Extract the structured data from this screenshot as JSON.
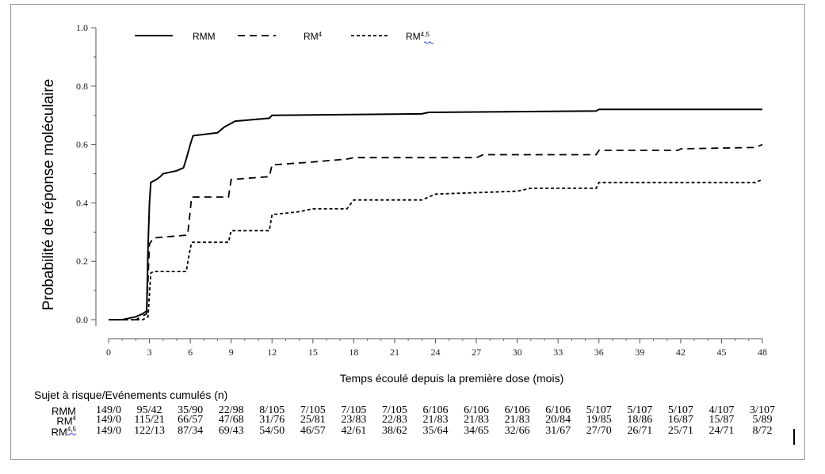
{
  "chart_data": {
    "type": "line",
    "ylabel": "Probabilité de réponse moléculaire",
    "xlabel": "Temps écoulé depuis la première dose (mois)",
    "xlim": [
      0,
      48
    ],
    "ylim": [
      0,
      1.0
    ],
    "xticks": [
      "0",
      "3",
      "6",
      "9",
      "12",
      "15",
      "18",
      "21",
      "24",
      "27",
      "30",
      "33",
      "36",
      "39",
      "42",
      "45",
      "48"
    ],
    "yticks": [
      "0.0",
      "0.2",
      "0.4",
      "0.6",
      "0.8",
      "1.0"
    ],
    "legend_position": "top-left",
    "series": [
      {
        "name": "RMM",
        "name_base": "RMM",
        "name_sup": "",
        "style": "solid",
        "points": [
          [
            0,
            0
          ],
          [
            1,
            0
          ],
          [
            1.5,
            0.005
          ],
          [
            2,
            0.01
          ],
          [
            2.5,
            0.02
          ],
          [
            2.8,
            0.03
          ],
          [
            2.9,
            0.25
          ],
          [
            3,
            0.4
          ],
          [
            3.1,
            0.47
          ],
          [
            3.5,
            0.48
          ],
          [
            3.8,
            0.49
          ],
          [
            4,
            0.5
          ],
          [
            5,
            0.51
          ],
          [
            5.5,
            0.52
          ],
          [
            5.7,
            0.55
          ],
          [
            6,
            0.6
          ],
          [
            6.2,
            0.63
          ],
          [
            8,
            0.64
          ],
          [
            8.5,
            0.66
          ],
          [
            9.3,
            0.68
          ],
          [
            11.8,
            0.69
          ],
          [
            12,
            0.7
          ],
          [
            23,
            0.705
          ],
          [
            23.5,
            0.71
          ],
          [
            35.8,
            0.715
          ],
          [
            36,
            0.72
          ],
          [
            48,
            0.72
          ]
        ]
      },
      {
        "name": "RM4",
        "name_base": "RM",
        "name_sup": "4",
        "style": "dashed",
        "points": [
          [
            0,
            0
          ],
          [
            2,
            0
          ],
          [
            2.4,
            0.01
          ],
          [
            2.8,
            0.02
          ],
          [
            3,
            0.26
          ],
          [
            3.3,
            0.28
          ],
          [
            5.8,
            0.29
          ],
          [
            5.9,
            0.33
          ],
          [
            6.1,
            0.42
          ],
          [
            8.8,
            0.42
          ],
          [
            9,
            0.48
          ],
          [
            11.8,
            0.49
          ],
          [
            12,
            0.53
          ],
          [
            15,
            0.54
          ],
          [
            17.5,
            0.55
          ],
          [
            18,
            0.555
          ],
          [
            27,
            0.555
          ],
          [
            27.5,
            0.565
          ],
          [
            35.8,
            0.565
          ],
          [
            36,
            0.58
          ],
          [
            41.8,
            0.58
          ],
          [
            42,
            0.585
          ],
          [
            47.5,
            0.59
          ],
          [
            48,
            0.6
          ]
        ]
      },
      {
        "name": "RM4,5",
        "name_base": "RM",
        "name_sup": "4,5",
        "style": "dotted-dash",
        "points": [
          [
            0,
            0
          ],
          [
            2.5,
            0
          ],
          [
            2.9,
            0.01
          ],
          [
            3.1,
            0.16
          ],
          [
            3.3,
            0.165
          ],
          [
            5.7,
            0.165
          ],
          [
            5.9,
            0.22
          ],
          [
            6.1,
            0.265
          ],
          [
            8.8,
            0.265
          ],
          [
            9,
            0.305
          ],
          [
            11.8,
            0.305
          ],
          [
            12,
            0.36
          ],
          [
            14,
            0.37
          ],
          [
            15,
            0.38
          ],
          [
            17.5,
            0.38
          ],
          [
            18,
            0.41
          ],
          [
            23,
            0.41
          ],
          [
            24,
            0.43
          ],
          [
            30,
            0.44
          ],
          [
            31,
            0.45
          ],
          [
            35.8,
            0.45
          ],
          [
            36,
            0.47
          ],
          [
            47.5,
            0.47
          ],
          [
            48,
            0.48
          ]
        ]
      }
    ]
  },
  "risk_table": {
    "title": "Sujet à risque/Evénements cumulés (n)",
    "rows": [
      {
        "label_base": "RMM",
        "label_sup": "",
        "cells": [
          "149/0",
          "95/42",
          "35/90",
          "22/98",
          "8/105",
          "7/105",
          "7/105",
          "7/105",
          "6/106",
          "6/106",
          "6/106",
          "6/106",
          "5/107",
          "5/107",
          "5/107",
          "4/107",
          "3/107"
        ]
      },
      {
        "label_base": "RM",
        "label_sup": "4",
        "cells": [
          "149/0",
          "115/21",
          "66/57",
          "47/68",
          "31/76",
          "25/81",
          "23/83",
          "22/83",
          "21/83",
          "21/83",
          "21/83",
          "20/84",
          "19/85",
          "18/86",
          "16/87",
          "15/87",
          "5/89"
        ]
      },
      {
        "label_base": "RM",
        "label_sup": "4,5",
        "cells": [
          "149/0",
          "122/13",
          "87/34",
          "69/43",
          "54/50",
          "46/57",
          "42/61",
          "38/62",
          "35/64",
          "34/65",
          "32/66",
          "31/67",
          "27/70",
          "26/71",
          "25/71",
          "24/71",
          "8/72"
        ]
      }
    ]
  }
}
